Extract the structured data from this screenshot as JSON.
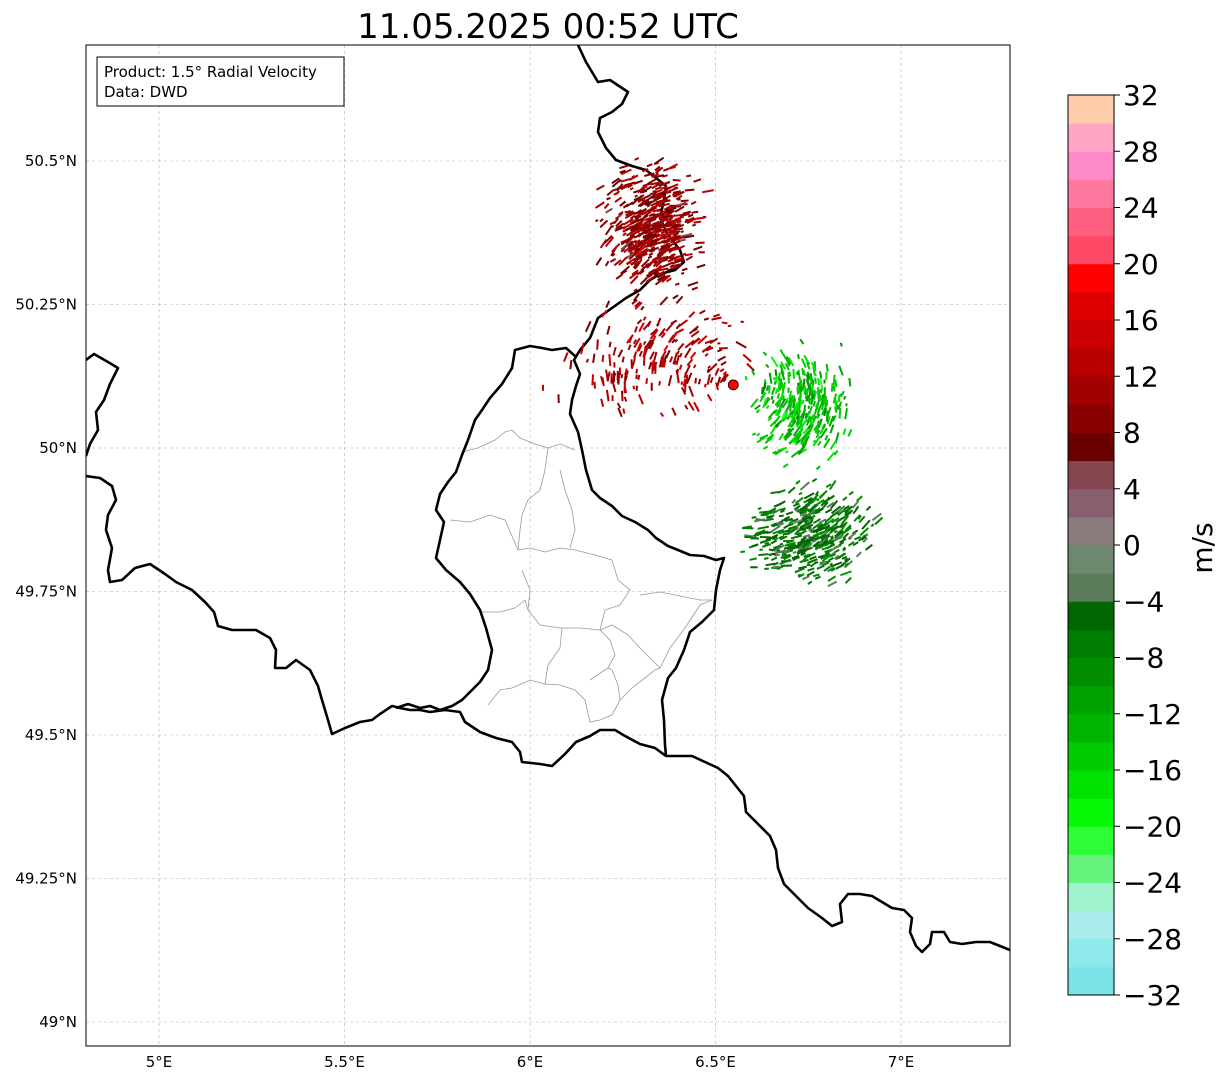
{
  "title": "11.05.2025 00:52 UTC",
  "info_box": {
    "line1": "Product: 1.5° Radial Velocity",
    "line2": "Data: DWD"
  },
  "axes": {
    "lon_ticks": [
      {
        "value": 5.0,
        "label": "5°E"
      },
      {
        "value": 5.5,
        "label": "5.5°E"
      },
      {
        "value": 6.0,
        "label": "6°E"
      },
      {
        "value": 6.5,
        "label": "6.5°E"
      },
      {
        "value": 7.0,
        "label": "7°E"
      }
    ],
    "lat_ticks": [
      {
        "value": 50.5,
        "label": "50.5°N"
      },
      {
        "value": 50.25,
        "label": "50.25°N"
      },
      {
        "value": 50.0,
        "label": "50°N"
      },
      {
        "value": 49.75,
        "label": "49.75°N"
      },
      {
        "value": 49.5,
        "label": "49.5°N"
      },
      {
        "value": 49.25,
        "label": "49.25°N"
      },
      {
        "value": 49.0,
        "label": "49°N"
      }
    ]
  },
  "radar_site": {
    "lon": 6.548,
    "lat": 50.11,
    "color": "#ff0000"
  },
  "colorbar": {
    "label": "m/s",
    "min": -32,
    "max": 32,
    "step": 4,
    "tick_labels": [
      "32",
      "28",
      "24",
      "20",
      "16",
      "12",
      "8",
      "4",
      "0",
      "−4",
      "−8",
      "−12",
      "−16",
      "−20",
      "−24",
      "−28",
      "−32"
    ],
    "colors_bottom_to_top": [
      "#7ae3e8",
      "#8eeaea",
      "#a9ecee",
      "#9ef3cc",
      "#66f37d",
      "#2efe35",
      "#06f806",
      "#00e200",
      "#00cc00",
      "#00b400",
      "#00a200",
      "#008e00",
      "#007d00",
      "#006600",
      "#5a7c5a",
      "#6e886e",
      "#8a7c7c",
      "#86606e",
      "#864650",
      "#6a0000",
      "#880000",
      "#a10000",
      "#b80000",
      "#cc0000",
      "#de0000",
      "#ff0000",
      "#ff4866",
      "#ff5f80",
      "#ff78a0",
      "#ff8ac8",
      "#ffa6c6",
      "#ffccac"
    ]
  },
  "echo_regions": [
    {
      "name": "outbound-north",
      "lon": 6.33,
      "lat": 50.38,
      "value": 10
    },
    {
      "name": "outbound-scatter",
      "lon": 6.35,
      "lat": 50.15,
      "value": 12
    },
    {
      "name": "inbound-east",
      "lon": 6.73,
      "lat": 50.07,
      "value": -14
    },
    {
      "name": "inbound-southeast",
      "lon": 6.75,
      "lat": 49.85,
      "value": -6
    }
  ]
}
